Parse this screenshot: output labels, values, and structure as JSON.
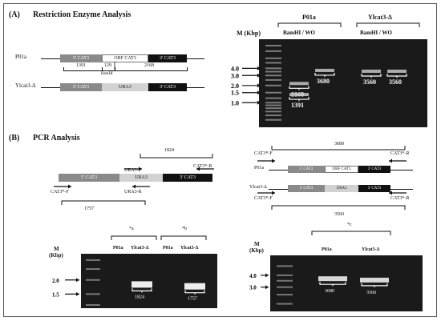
{
  "panel_a": {
    "label": "(A)",
    "title": "Restriction Enzyme Analysis",
    "construct_p01a": {
      "strain": "P01a",
      "seg1": "5' CAT3",
      "seg2": "ORF CAT3",
      "seg3": "3' CAT3",
      "size_left": "1391",
      "size_mid": "129",
      "size_right": "2168",
      "site_label": "BamHI"
    },
    "construct_ylcat3": {
      "strain": "Ylcat3-Δ",
      "seg1": "5' CAT3",
      "seg2": "URA3",
      "seg3": "3' CAT3"
    },
    "gel": {
      "marker_label": "M (Kbp)",
      "marker_ticks": [
        {
          "label": "4.0",
          "kbp": 4.0
        },
        {
          "label": "3.0",
          "kbp": 3.0
        },
        {
          "label": "2.0",
          "kbp": 2.0
        },
        {
          "label": "1.5",
          "kbp": 1.5
        },
        {
          "label": "1.0",
          "kbp": 1.0
        }
      ],
      "ladder_kbp": [
        10,
        8,
        6,
        5,
        4,
        3.5,
        3,
        2.5,
        2,
        1.5,
        1.2,
        1,
        0.9,
        0.8,
        0.7,
        0.6,
        0.5
      ],
      "groups": [
        {
          "strain": "P01a",
          "treatment": "BamHI / WO",
          "lane_count": 2
        },
        {
          "strain": "Ylcat3-Δ",
          "treatment": "BamHI / WO",
          "lane_count": 2
        }
      ],
      "bands": [
        {
          "lane": 1,
          "bp": 2168,
          "label": "2168"
        },
        {
          "lane": 1,
          "bp": 1391,
          "label": "1391"
        },
        {
          "lane": 2,
          "bp": 3680,
          "label": "3680"
        },
        {
          "lane": 3,
          "bp": 3560,
          "label": "3560"
        },
        {
          "lane": 4,
          "bp": 3560,
          "label": "3560"
        }
      ]
    }
  },
  "panel_b": {
    "label": "(B)",
    "title": "PCR Analysis",
    "left_construct": {
      "seg1": "5' CAT3",
      "seg2": "URA3",
      "seg3": "3' CAT3",
      "primer_top_mid": "URA3-F",
      "primer_top_right": "CAT3*-R",
      "primer_bottom_left": "CAT3*-F",
      "primer_bottom_mid": "URA3-R",
      "amplicon_top": "1824",
      "amplicon_bottom": "1757"
    },
    "right_construct": {
      "amplicon_top": "3680",
      "amplicon_bottom": "3560",
      "primer_f": "CAT3*-F",
      "primer_r": "CAT3*-R",
      "strain_top": "P01a",
      "strain_bottom": "Ylcat3-Δ",
      "top_seg1": "5' CAT3",
      "top_seg2": "ORF CAT3",
      "top_seg3": "3' CAT3",
      "bottom_seg1": "5' CAT3",
      "bottom_seg2": "URA3",
      "bottom_seg3": "3' CAT3"
    },
    "gel_left": {
      "marker_label": "M",
      "marker_unit": "(Kbp)",
      "marker_ticks": [
        {
          "label": "2.0",
          "kbp": 2.0
        },
        {
          "label": "1.5",
          "kbp": 1.5
        }
      ],
      "groups": [
        {
          "tag": "*a",
          "lanes": [
            1,
            2
          ]
        },
        {
          "tag": "*b",
          "lanes": [
            3,
            4
          ]
        }
      ],
      "lanes": [
        "P01a",
        "Ylcat3-Δ",
        "P01a",
        "Ylcat3-Δ"
      ],
      "bands": [
        {
          "lane": 2,
          "bp": 1824,
          "label": "1824"
        },
        {
          "lane": 4,
          "bp": 1757,
          "label": "1757"
        }
      ]
    },
    "gel_right": {
      "marker_label": "M",
      "marker_unit": "(Kbp)",
      "marker_ticks": [
        {
          "label": "4.0",
          "kbp": 4.0
        },
        {
          "label": "3.0",
          "kbp": 3.0
        }
      ],
      "groups": [
        {
          "tag": "*c",
          "lanes": [
            1,
            2
          ]
        }
      ],
      "lanes": [
        "P01a",
        "Ylcat3-Δ"
      ],
      "bands": [
        {
          "lane": 1,
          "bp": 3680,
          "label": "3680"
        },
        {
          "lane": 2,
          "bp": 3560,
          "label": "3560"
        }
      ]
    }
  }
}
